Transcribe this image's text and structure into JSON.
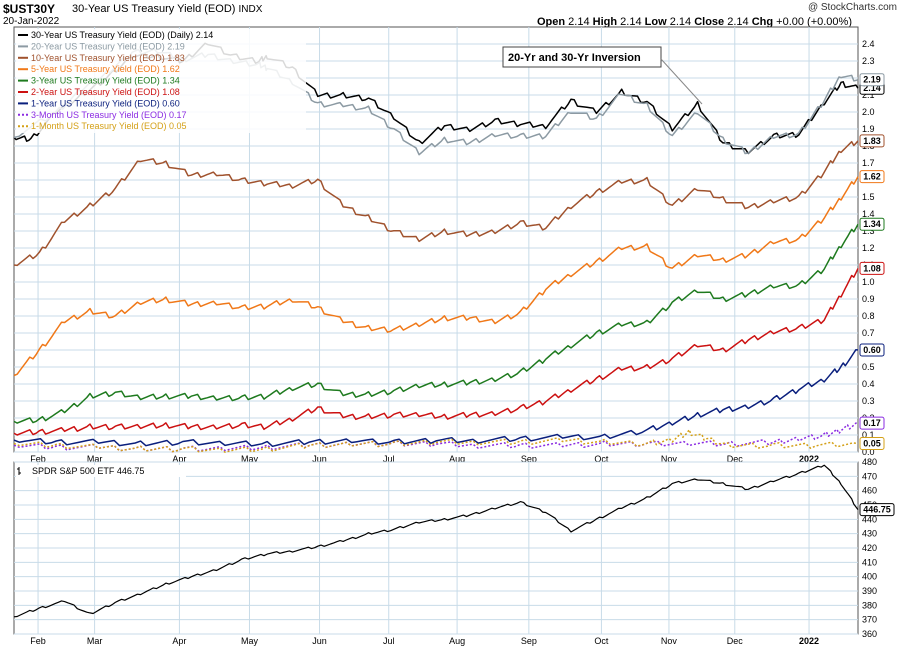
{
  "header": {
    "ticker": "$UST30Y",
    "title": "30-Year US Treasury Yield (EOD)",
    "exchange": "INDX",
    "date": "20-Jan-2022",
    "credit": "@ StockCharts.com",
    "open_label": "Open",
    "open": "2.14",
    "high_label": "High",
    "high": "2.14",
    "low_label": "Low",
    "low": "2.14",
    "close_label": "Close",
    "close": "2.14",
    "chg_label": "Chg",
    "chg": "+0.00 (+0.00%)"
  },
  "colors": {
    "grid": "#c8dbe8",
    "panel_border": "#555555",
    "y30": "#000000",
    "y20": "#8c9aa3",
    "y10": "#a0522d",
    "y5": "#f07818",
    "y3": "#1e7a1e",
    "y2": "#cc1111",
    "y1": "#0a1f7d",
    "m3": "#8a2be2",
    "m1": "#d4a017"
  },
  "chart_data": [
    {
      "type": "line",
      "panel": "yields",
      "ylim": [
        0,
        2.5
      ],
      "y_ticks": [
        "0.0",
        "0.1",
        "0.2",
        "0.3",
        "0.4",
        "0.5",
        "0.6",
        "0.7",
        "0.8",
        "0.9",
        "1.0",
        "1.1",
        "1.2",
        "1.3",
        "1.4",
        "1.5",
        "1.6",
        "1.7",
        "1.8",
        "1.9",
        "2.0",
        "2.1",
        "2.2",
        "2.3",
        "2.4"
      ],
      "x_labels": [
        "Feb",
        "Mar",
        "Apr",
        "May",
        "Jun",
        "Jul",
        "Aug",
        "Sep",
        "Oct",
        "Nov",
        "Dec",
        "2022"
      ],
      "annotation": "20-Yr and 30-Yr Inversion",
      "series": [
        {
          "name": "30-Year US Treasury Yield (EOD) (Daily) 2.14",
          "key": "y30",
          "last": "2.14",
          "dash": false,
          "x": [
            0,
            0.02,
            0.05,
            0.08,
            0.11,
            0.14,
            0.17,
            0.2,
            0.23,
            0.26,
            0.29,
            0.3,
            0.33,
            0.36,
            0.39,
            0.42,
            0.45,
            0.48,
            0.51,
            0.54,
            0.57,
            0.6,
            0.63,
            0.66,
            0.69,
            0.72,
            0.75,
            0.78,
            0.81,
            0.84,
            0.87,
            0.9,
            0.93,
            0.96,
            0.98,
            1
          ],
          "y": [
            1.85,
            1.84,
            2.0,
            2.1,
            2.2,
            2.33,
            2.33,
            2.3,
            2.41,
            2.33,
            2.3,
            2.33,
            2.26,
            2.1,
            2.1,
            2.08,
            1.97,
            1.82,
            1.92,
            1.9,
            1.95,
            1.93,
            1.92,
            2.07,
            2.0,
            2.12,
            2.06,
            1.9,
            2.05,
            1.82,
            1.77,
            1.86,
            1.87,
            2.06,
            2.17,
            2.14
          ]
        },
        {
          "name": "20-Year US Treasury Yield (EOD) 2.19",
          "key": "y20",
          "last": "2.19",
          "dash": false,
          "x": [
            0,
            0.05,
            0.08,
            0.11,
            0.14,
            0.17,
            0.2,
            0.23,
            0.26,
            0.29,
            0.3,
            0.33,
            0.36,
            0.39,
            0.42,
            0.45,
            0.48,
            0.51,
            0.54,
            0.57,
            0.6,
            0.63,
            0.66,
            0.69,
            0.72,
            0.75,
            0.78,
            0.81,
            0.84,
            0.87,
            0.9,
            0.93,
            0.96,
            0.98,
            1
          ],
          "y": [
            1.85,
            2.0,
            2.13,
            2.23,
            2.35,
            2.36,
            2.31,
            2.34,
            2.3,
            2.28,
            2.26,
            2.18,
            2.05,
            2.04,
            2.02,
            1.9,
            1.76,
            1.84,
            1.82,
            1.87,
            1.86,
            1.86,
            2.01,
            1.96,
            2.11,
            2.04,
            1.86,
            2.0,
            1.84,
            1.76,
            1.86,
            1.87,
            2.07,
            2.22,
            2.19
          ]
        },
        {
          "name": "10-Year US Treasury Yield (EOD) 1.83",
          "key": "y10",
          "last": "1.83",
          "dash": false,
          "x": [
            0,
            0.03,
            0.06,
            0.09,
            0.12,
            0.15,
            0.18,
            0.21,
            0.24,
            0.27,
            0.3,
            0.33,
            0.36,
            0.39,
            0.42,
            0.45,
            0.48,
            0.51,
            0.54,
            0.57,
            0.6,
            0.63,
            0.66,
            0.69,
            0.72,
            0.75,
            0.78,
            0.81,
            0.84,
            0.87,
            0.9,
            0.93,
            0.96,
            0.98,
            1
          ],
          "y": [
            1.1,
            1.17,
            1.36,
            1.45,
            1.55,
            1.72,
            1.7,
            1.63,
            1.64,
            1.6,
            1.58,
            1.57,
            1.6,
            1.45,
            1.38,
            1.3,
            1.25,
            1.3,
            1.28,
            1.3,
            1.35,
            1.32,
            1.45,
            1.53,
            1.59,
            1.6,
            1.45,
            1.55,
            1.49,
            1.44,
            1.48,
            1.5,
            1.65,
            1.78,
            1.83
          ]
        },
        {
          "name": "5-Year US Treasury Yield (EOD) 1.62",
          "key": "y5",
          "last": "1.62",
          "dash": false,
          "x": [
            0,
            0.03,
            0.06,
            0.09,
            0.12,
            0.15,
            0.18,
            0.21,
            0.24,
            0.27,
            0.3,
            0.33,
            0.36,
            0.39,
            0.42,
            0.45,
            0.48,
            0.51,
            0.54,
            0.57,
            0.6,
            0.63,
            0.66,
            0.69,
            0.72,
            0.75,
            0.78,
            0.81,
            0.84,
            0.87,
            0.9,
            0.93,
            0.96,
            0.98,
            1
          ],
          "y": [
            0.45,
            0.6,
            0.77,
            0.83,
            0.8,
            0.88,
            0.9,
            0.87,
            0.88,
            0.85,
            0.86,
            0.9,
            0.85,
            0.77,
            0.73,
            0.72,
            0.75,
            0.79,
            0.79,
            0.77,
            0.82,
            0.96,
            1.05,
            1.12,
            1.2,
            1.21,
            1.08,
            1.16,
            1.13,
            1.16,
            1.24,
            1.25,
            1.38,
            1.5,
            1.62
          ]
        },
        {
          "name": "3-Year US Treasury Yield (EOD) 1.34",
          "key": "y3",
          "last": "1.34",
          "dash": false,
          "x": [
            0,
            0.03,
            0.06,
            0.09,
            0.12,
            0.15,
            0.18,
            0.21,
            0.24,
            0.27,
            0.3,
            0.33,
            0.36,
            0.39,
            0.42,
            0.45,
            0.48,
            0.51,
            0.54,
            0.57,
            0.6,
            0.63,
            0.66,
            0.69,
            0.72,
            0.75,
            0.78,
            0.81,
            0.84,
            0.87,
            0.9,
            0.93,
            0.96,
            0.98,
            1
          ],
          "y": [
            0.18,
            0.19,
            0.24,
            0.33,
            0.35,
            0.32,
            0.33,
            0.33,
            0.32,
            0.32,
            0.33,
            0.38,
            0.4,
            0.34,
            0.34,
            0.36,
            0.39,
            0.4,
            0.41,
            0.43,
            0.47,
            0.55,
            0.63,
            0.7,
            0.75,
            0.76,
            0.88,
            0.95,
            0.9,
            0.93,
            0.98,
            0.98,
            1.08,
            1.22,
            1.34
          ]
        },
        {
          "name": "2-Year US Treasury Yield (EOD) 1.08",
          "key": "y2",
          "last": "1.08",
          "dash": false,
          "x": [
            0,
            0.03,
            0.06,
            0.09,
            0.12,
            0.15,
            0.18,
            0.21,
            0.24,
            0.27,
            0.3,
            0.33,
            0.36,
            0.39,
            0.42,
            0.45,
            0.48,
            0.51,
            0.54,
            0.57,
            0.6,
            0.63,
            0.66,
            0.69,
            0.72,
            0.75,
            0.78,
            0.81,
            0.84,
            0.87,
            0.9,
            0.93,
            0.96,
            0.98,
            1
          ],
          "y": [
            0.11,
            0.12,
            0.13,
            0.15,
            0.15,
            0.15,
            0.16,
            0.15,
            0.15,
            0.16,
            0.15,
            0.2,
            0.26,
            0.21,
            0.21,
            0.22,
            0.22,
            0.21,
            0.22,
            0.23,
            0.26,
            0.3,
            0.37,
            0.43,
            0.49,
            0.5,
            0.55,
            0.63,
            0.6,
            0.66,
            0.71,
            0.73,
            0.78,
            0.93,
            1.08
          ]
        },
        {
          "name": "1-Year US Treasury Yield (EOD) 0.60",
          "key": "y1",
          "last": "0.60",
          "dash": false,
          "x": [
            0,
            0.05,
            0.1,
            0.15,
            0.2,
            0.25,
            0.3,
            0.35,
            0.4,
            0.45,
            0.5,
            0.55,
            0.6,
            0.65,
            0.7,
            0.75,
            0.78,
            0.81,
            0.84,
            0.87,
            0.9,
            0.93,
            0.96,
            0.98,
            1
          ],
          "y": [
            0.07,
            0.06,
            0.06,
            0.05,
            0.06,
            0.05,
            0.05,
            0.06,
            0.07,
            0.06,
            0.07,
            0.07,
            0.08,
            0.09,
            0.09,
            0.13,
            0.17,
            0.22,
            0.25,
            0.27,
            0.31,
            0.37,
            0.43,
            0.5,
            0.6
          ]
        },
        {
          "name": "3-Month US Treasury Yield (EOD) 0.17",
          "key": "m3",
          "last": "0.17",
          "dash": true,
          "x": [
            0,
            0.05,
            0.1,
            0.15,
            0.2,
            0.25,
            0.3,
            0.35,
            0.4,
            0.45,
            0.5,
            0.55,
            0.6,
            0.65,
            0.7,
            0.75,
            0.8,
            0.85,
            0.9,
            0.93,
            0.96,
            0.98,
            1
          ],
          "y": [
            0.04,
            0.03,
            0.03,
            0.02,
            0.02,
            0.02,
            0.03,
            0.04,
            0.05,
            0.05,
            0.05,
            0.04,
            0.04,
            0.04,
            0.05,
            0.05,
            0.05,
            0.05,
            0.06,
            0.08,
            0.1,
            0.13,
            0.17
          ]
        },
        {
          "name": "1-Month US Treasury Yield (EOD) 0.05",
          "key": "m1",
          "last": "0.05",
          "dash": true,
          "x": [
            0,
            0.05,
            0.1,
            0.15,
            0.2,
            0.25,
            0.3,
            0.35,
            0.4,
            0.45,
            0.5,
            0.55,
            0.6,
            0.65,
            0.7,
            0.75,
            0.78,
            0.8,
            0.82,
            0.85,
            0.9,
            0.95,
            1
          ],
          "y": [
            0.05,
            0.04,
            0.03,
            0.02,
            0.02,
            0.01,
            0.02,
            0.04,
            0.05,
            0.05,
            0.06,
            0.06,
            0.06,
            0.07,
            0.06,
            0.05,
            0.07,
            0.12,
            0.08,
            0.04,
            0.04,
            0.04,
            0.05
          ]
        }
      ]
    },
    {
      "type": "line",
      "panel": "spy",
      "ylim": [
        360,
        480
      ],
      "y_ticks": [
        "360",
        "370",
        "380",
        "390",
        "400",
        "410",
        "420",
        "430",
        "440",
        "450",
        "460",
        "470",
        "480"
      ],
      "x_labels": [
        "Feb",
        "Mar",
        "Apr",
        "May",
        "Jun",
        "Jul",
        "Aug",
        "Sep",
        "Oct",
        "Nov",
        "Dec",
        "2022"
      ],
      "series": [
        {
          "name": "SPDR S&P 500 ETF 446.75",
          "key": "spy",
          "last": "446.75",
          "x": [
            0,
            0.03,
            0.06,
            0.09,
            0.12,
            0.15,
            0.18,
            0.21,
            0.24,
            0.27,
            0.3,
            0.33,
            0.36,
            0.39,
            0.42,
            0.45,
            0.48,
            0.51,
            0.54,
            0.57,
            0.6,
            0.63,
            0.66,
            0.69,
            0.72,
            0.75,
            0.78,
            0.81,
            0.84,
            0.87,
            0.9,
            0.93,
            0.96,
            0.98,
            1
          ],
          "y": [
            372,
            378,
            383,
            374,
            382,
            388,
            395,
            400,
            405,
            412,
            416,
            418,
            421,
            425,
            430,
            433,
            438,
            440,
            443,
            448,
            452,
            445,
            432,
            440,
            448,
            455,
            465,
            468,
            465,
            461,
            467,
            472,
            478,
            465,
            446.75
          ]
        }
      ]
    }
  ],
  "legend_panel2": "SPDR S&P 500 ETF 446.75"
}
